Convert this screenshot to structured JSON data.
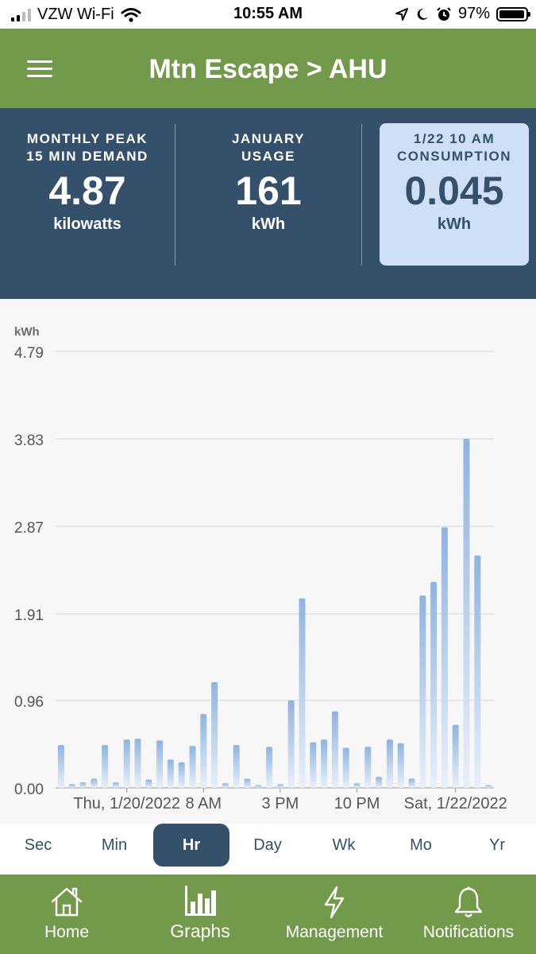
{
  "status_bar": {
    "carrier": "VZW Wi-Fi",
    "time": "10:55 AM",
    "battery": "97%"
  },
  "header": {
    "title": "Mtn Escape > AHU"
  },
  "stats": [
    {
      "label_line1": "MONTHLY PEAK",
      "label_line2": "15 MIN DEMAND",
      "value": "4.87",
      "unit": "kilowatts"
    },
    {
      "label_line1": "JANUARY",
      "label_line2": "USAGE",
      "value": "161",
      "unit": "kWh"
    },
    {
      "label_line1": "1/22 10 AM",
      "label_line2": "CONSUMPTION",
      "value": "0.045",
      "unit": "kWh"
    }
  ],
  "colors": {
    "header_green": "#729a4a",
    "stats_navy": "#34506a",
    "selected_panel": "#cfe0f6",
    "bar_blue": "#8fb4e0"
  },
  "chart_data": {
    "type": "bar",
    "ylabel": "kWh",
    "ylim": [
      0,
      4.79
    ],
    "y_ticks": [
      "4.79",
      "3.83",
      "2.87",
      "1.91",
      "0.96",
      "0.00"
    ],
    "y_tick_values": [
      4.79,
      3.83,
      2.87,
      1.91,
      0.96,
      0.0
    ],
    "x_ticks": [
      "Thu, 1/20/2022",
      "8 AM",
      "3 PM",
      "10 PM",
      "Sat, 1/22/2022"
    ],
    "x_tick_index": [
      6,
      13,
      20,
      27,
      36
    ],
    "grid": true,
    "values": [
      0.47,
      0.04,
      0.06,
      0.1,
      0.47,
      0.06,
      0.53,
      0.54,
      0.09,
      0.52,
      0.31,
      0.28,
      0.46,
      0.81,
      1.16,
      0.05,
      0.47,
      0.1,
      0.03,
      0.45,
      0.04,
      0.96,
      2.08,
      0.5,
      0.53,
      0.84,
      0.44,
      0.05,
      0.45,
      0.12,
      0.53,
      0.49,
      0.1,
      2.11,
      2.26,
      2.86,
      0.69,
      3.83,
      2.55,
      0.03
    ]
  },
  "time_ranges": [
    "Sec",
    "Min",
    "Hr",
    "Day",
    "Wk",
    "Mo",
    "Yr"
  ],
  "active_range": "Hr",
  "nav": [
    {
      "label": "Home",
      "icon": "home-icon"
    },
    {
      "label": "Graphs",
      "icon": "bar-chart-icon"
    },
    {
      "label": "Management",
      "icon": "lightning-icon"
    },
    {
      "label": "Notifications",
      "icon": "bell-icon"
    }
  ],
  "active_nav": "Graphs"
}
